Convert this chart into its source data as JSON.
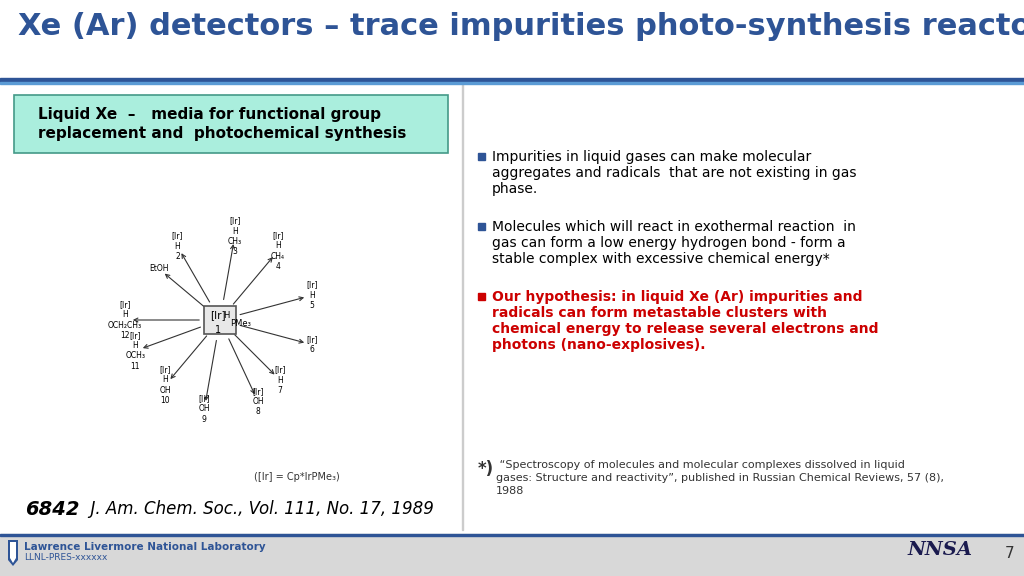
{
  "title": "Xe (Ar) detectors – trace impurities photo-synthesis reactors",
  "title_color": "#2E5496",
  "title_fontsize": 22,
  "bg_color": "#FFFFFF",
  "header_line_color": "#2E5496",
  "header_line2_color": "#4472C4",
  "left_box_text": "Liquid Xe  –   media for functional group\nreplacement and  photochemical synthesis",
  "left_box_bg": "#AAEEDD",
  "left_box_border": "#449988",
  "citation_number": "6842",
  "citation_label": "  J. Am. Chem. Soc., Vol. 111, No. 17, 1989",
  "bullet1_lines": [
    "Impurities in liquid gases can make molecular",
    "aggregates and radicals  that are not existing in gas",
    "phase."
  ],
  "bullet2_lines": [
    "Molecules which will react in exothermal reaction  in",
    "gas can form a low energy hydrogen bond - form a",
    "stable complex with excessive chemical energy*"
  ],
  "bullet3_lines": [
    "Our hypothesis: in liquid Xe (Ar) impurities and",
    "radicals can form metastable clusters with",
    "chemical energy to release several electrons and",
    "photons (nano-explosives)."
  ],
  "bullet_color1": "#000000",
  "bullet_color2": "#000000",
  "bullet_color3": "#CC0000",
  "bullet_marker_color1": "#2E5496",
  "bullet_marker_color2": "#2E5496",
  "bullet_marker_color3": "#CC0000",
  "footnote_star": "*)",
  "footnote_text": " “Spectroscopy of molecules and molecular complexes dissolved in liquid\ngases: Structure and reactivity”, published in Russian Chemical Reviews, 57 (8),\n1988",
  "footer_bg": "#D8D8D8",
  "footer_line_color": "#2E5496",
  "footer_lab_bold": "Lawrence Livermore National Laboratory",
  "footer_sub": "LLNL-PRES-xxxxxx",
  "footer_page": "7",
  "diagram_notation": "([Ir] = Cp*IrPMe₃)"
}
